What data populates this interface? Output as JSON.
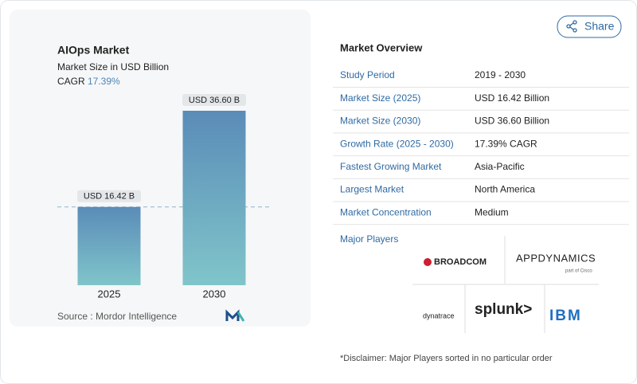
{
  "chart_data": {
    "type": "bar",
    "title": "AIOps Market",
    "subtitle": "Market Size in USD Billion",
    "cagr_label": "CAGR",
    "cagr": "17.39%",
    "categories": [
      "2025",
      "2030"
    ],
    "values": [
      16.42,
      36.6
    ],
    "value_labels": [
      "USD 16.42 B",
      "USD 36.60 B"
    ],
    "source": "Source :  Mordor Intelligence"
  },
  "share": "Share",
  "overview": {
    "title": "Market Overview",
    "rows": [
      [
        "Study Period",
        "2019 - 2030"
      ],
      [
        "Market Size (2025)",
        "USD 16.42 Billion"
      ],
      [
        "Market Size (2030)",
        "USD 36.60 Billion"
      ],
      [
        "Growth Rate (2025 - 2030)",
        "17.39% CAGR"
      ],
      [
        "Fastest Growing Market",
        "Asia-Pacific"
      ],
      [
        "Largest Market",
        "North America"
      ],
      [
        "Market Concentration",
        "Medium"
      ]
    ]
  },
  "players": {
    "title": "Major Players",
    "broadcom": "BROADCOM",
    "appdynamics": "APPDYNAMICS",
    "appdynamics_sub": "part of Cisco",
    "dynatrace": "dynatrace",
    "splunk": "splunk>",
    "ibm": "IBM"
  },
  "disclaimer": "*Disclaimer: Major Players sorted in no particular order"
}
